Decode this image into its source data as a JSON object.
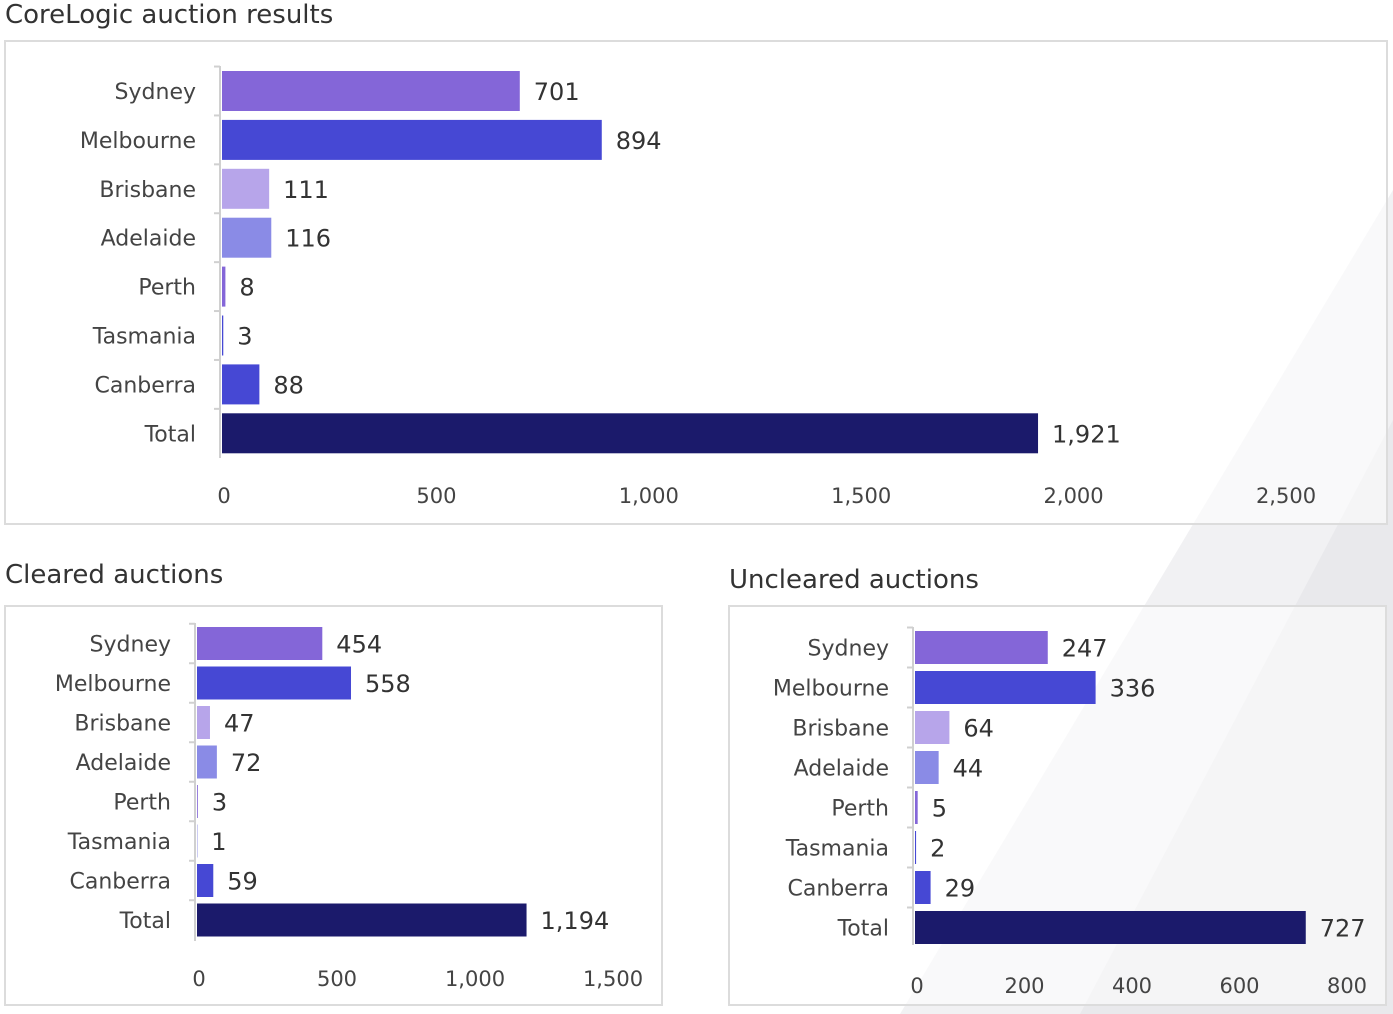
{
  "titles": {
    "main": "CoreLogic auction results",
    "cleared": "Cleared auctions",
    "uncleared": "Uncleared auctions"
  },
  "chart_data": [
    {
      "id": "main",
      "type": "bar",
      "orientation": "horizontal",
      "title": "CoreLogic auction results",
      "categories": [
        "Sydney",
        "Melbourne",
        "Brisbane",
        "Adelaide",
        "Perth",
        "Tasmania",
        "Canberra",
        "Total"
      ],
      "values": [
        701,
        894,
        111,
        116,
        8,
        3,
        88,
        1921
      ],
      "value_labels": [
        "701",
        "894",
        "111",
        "116",
        "8",
        "3",
        "88",
        "1,921"
      ],
      "colors": [
        "#8466d8",
        "#4648d4",
        "#b7a5ea",
        "#8a8be6",
        "#8466d8",
        "#4648d4",
        "#4648d4",
        "#1b1a6b"
      ],
      "xlim": [
        0,
        2500
      ],
      "xticks": [
        0,
        500,
        1000,
        1500,
        2000,
        2500
      ],
      "xtick_labels": [
        "0",
        "500",
        "1,000",
        "1,500",
        "2,000",
        "2,500"
      ],
      "grid": false
    },
    {
      "id": "cleared",
      "type": "bar",
      "orientation": "horizontal",
      "title": "Cleared auctions",
      "categories": [
        "Sydney",
        "Melbourne",
        "Brisbane",
        "Adelaide",
        "Perth",
        "Tasmania",
        "Canberra",
        "Total"
      ],
      "values": [
        454,
        558,
        47,
        72,
        3,
        1,
        59,
        1194
      ],
      "value_labels": [
        "454",
        "558",
        "47",
        "72",
        "3",
        "1",
        "59",
        "1,194"
      ],
      "colors": [
        "#8466d8",
        "#4648d4",
        "#b7a5ea",
        "#8a8be6",
        "#8466d8",
        "#4648d4",
        "#4648d4",
        "#1b1a6b"
      ],
      "xlim": [
        0,
        1500
      ],
      "xticks": [
        0,
        500,
        1000,
        1500
      ],
      "xtick_labels": [
        "0",
        "500",
        "1,000",
        "1,500"
      ],
      "grid": false
    },
    {
      "id": "uncleared",
      "type": "bar",
      "orientation": "horizontal",
      "title": "Uncleared auctions",
      "categories": [
        "Sydney",
        "Melbourne",
        "Brisbane",
        "Adelaide",
        "Perth",
        "Tasmania",
        "Canberra",
        "Total"
      ],
      "values": [
        247,
        336,
        64,
        44,
        5,
        2,
        29,
        727
      ],
      "value_labels": [
        "247",
        "336",
        "64",
        "44",
        "5",
        "2",
        "29",
        "727"
      ],
      "colors": [
        "#8466d8",
        "#4648d4",
        "#b7a5ea",
        "#8a8be6",
        "#8466d8",
        "#4648d4",
        "#4648d4",
        "#1b1a6b"
      ],
      "xlim": [
        0,
        800
      ],
      "xticks": [
        0,
        200,
        400,
        600,
        800
      ],
      "xtick_labels": [
        "0",
        "200",
        "400",
        "600",
        "800"
      ],
      "grid": false
    }
  ]
}
